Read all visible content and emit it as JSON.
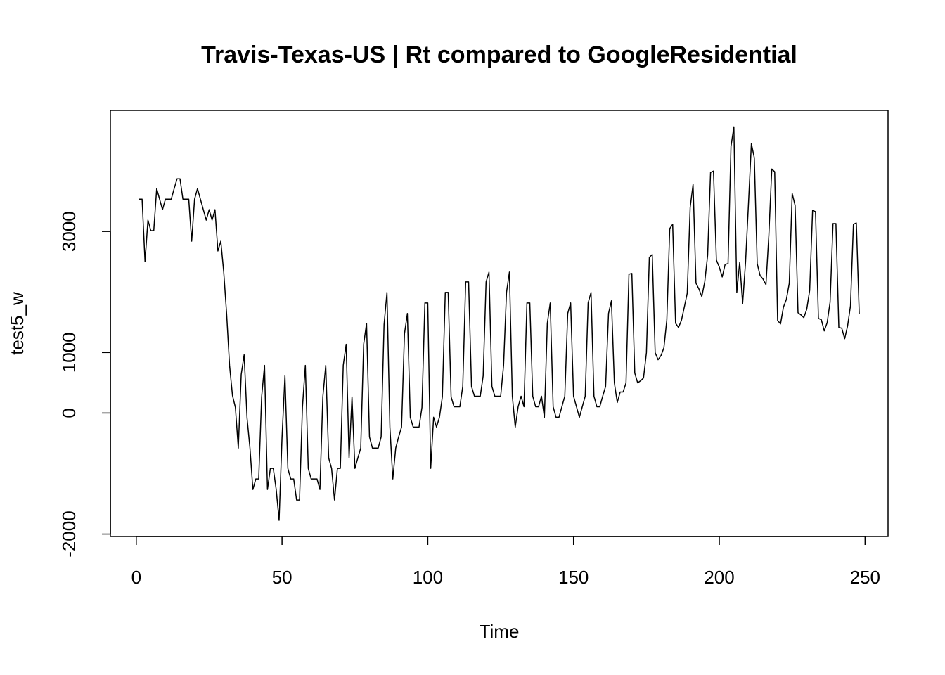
{
  "chart_data": {
    "type": "line",
    "title": "Travis-Texas-US | Rt compared to GoogleResidential",
    "xlabel": "Time",
    "ylabel": "test5_w",
    "color": "#000000",
    "xlim": [
      -8.88,
      257.88
    ],
    "ylim": [
      -2040,
      5000
    ],
    "xticks": [
      0,
      50,
      100,
      150,
      200,
      250
    ],
    "yticks": [
      -2000,
      0,
      1000,
      3000
    ],
    "x": [
      1,
      2,
      3,
      4,
      5,
      6,
      7,
      8,
      9,
      10,
      11,
      12,
      13,
      14,
      15,
      16,
      17,
      18,
      19,
      20,
      21,
      22,
      23,
      24,
      25,
      26,
      27,
      28,
      29,
      30,
      31,
      32,
      33,
      34,
      35,
      36,
      37,
      38,
      39,
      40,
      41,
      42,
      43,
      44,
      45,
      46,
      47,
      48,
      49,
      50,
      51,
      52,
      53,
      54,
      55,
      56,
      57,
      58,
      59,
      60,
      61,
      62,
      63,
      64,
      65,
      66,
      67,
      68,
      69,
      70,
      71,
      72,
      73,
      74,
      75,
      76,
      77,
      78,
      79,
      80,
      81,
      82,
      83,
      84,
      85,
      86,
      87,
      88,
      89,
      90,
      91,
      92,
      93,
      94,
      95,
      96,
      97,
      98,
      99,
      100,
      101,
      102,
      103,
      104,
      105,
      106,
      107,
      108,
      109,
      110,
      111,
      112,
      113,
      114,
      115,
      116,
      117,
      118,
      119,
      120,
      121,
      122,
      123,
      124,
      125,
      126,
      127,
      128,
      129,
      130,
      131,
      132,
      133,
      134,
      135,
      136,
      137,
      138,
      139,
      140,
      141,
      142,
      143,
      144,
      145,
      146,
      147,
      148,
      149,
      150,
      151,
      152,
      153,
      154,
      155,
      156,
      157,
      158,
      159,
      160,
      161,
      162,
      163,
      164,
      165,
      166,
      167,
      168,
      169,
      170,
      171,
      172,
      173,
      174,
      175,
      176,
      177,
      178,
      179,
      180,
      181,
      182,
      183,
      184,
      185,
      186,
      187,
      188,
      189,
      190,
      191,
      192,
      193,
      194,
      195,
      196,
      197,
      198,
      199,
      200,
      201,
      202,
      203,
      204,
      205,
      206,
      207,
      208,
      209,
      210,
      211,
      212,
      213,
      214,
      215,
      216,
      217,
      218,
      219,
      220,
      221,
      222,
      223,
      224,
      225,
      226,
      227,
      228,
      229,
      230,
      231,
      232,
      233,
      234,
      235,
      236,
      237,
      238,
      239,
      240,
      241,
      242,
      243,
      244,
      245,
      246,
      247,
      248
    ],
    "values": [
      3534,
      3534,
      2500,
      3187,
      3013,
      3013,
      3708,
      3534,
      3360,
      3534,
      3534,
      3534,
      3708,
      3870,
      3870,
      3534,
      3534,
      3534,
      2839,
      3534,
      3708,
      3534,
      3360,
      3187,
      3360,
      3187,
      3360,
      2677,
      2839,
      2329,
      1634,
      788,
      290,
      93,
      -579,
      637,
      962,
      -81,
      -579,
      -1263,
      -1089,
      -1089,
      267,
      788,
      -1263,
      -915,
      -915,
      -1263,
      -1773,
      -406,
      614,
      -915,
      -1089,
      -1089,
      -1437,
      -1437,
      93,
      788,
      -915,
      -1089,
      -1089,
      -1089,
      -1263,
      267,
      788,
      -742,
      -915,
      -1437,
      -915,
      -915,
      788,
      1136,
      -742,
      267,
      -915,
      -742,
      -579,
      1136,
      1483,
      -394,
      -579,
      -579,
      -579,
      -394,
      1460,
      1993,
      -232,
      -1089,
      -579,
      -394,
      -232,
      1309,
      1645,
      -70,
      -232,
      -232,
      -232,
      93,
      1819,
      1819,
      -915,
      -70,
      -232,
      -70,
      267,
      1993,
      1993,
      267,
      104,
      104,
      104,
      440,
      2167,
      2167,
      440,
      278,
      278,
      278,
      614,
      2167,
      2329,
      440,
      278,
      278,
      278,
      788,
      1993,
      2329,
      278,
      -232,
      104,
      278,
      104,
      1819,
      1819,
      278,
      104,
      104,
      278,
      -70,
      1483,
      1819,
      104,
      -70,
      -70,
      104,
      278,
      1645,
      1819,
      278,
      104,
      -70,
      104,
      278,
      1819,
      1993,
      278,
      104,
      104,
      278,
      440,
      1645,
      1854,
      498,
      174,
      348,
      348,
      498,
      2294,
      2306,
      660,
      498,
      533,
      579,
      997,
      2572,
      2619,
      997,
      881,
      950,
      1078,
      1541,
      3048,
      3117,
      1483,
      1414,
      1530,
      1750,
      1981,
      3395,
      3778,
      2144,
      2051,
      1924,
      2167,
      2607,
      3974,
      3998,
      2526,
      2410,
      2248,
      2457,
      2468,
      4403,
      4728,
      1993,
      2491,
      1808,
      2491,
      3453,
      4450,
      4218,
      2468,
      2271,
      2213,
      2121,
      2943,
      4032,
      3986,
      1530,
      1472,
      1750,
      1877,
      2144,
      3627,
      3430,
      1657,
      1622,
      1576,
      1715,
      2028,
      3349,
      3326,
      1564,
      1541,
      1356,
      1495,
      1831,
      3129,
      3129,
      1414,
      1402,
      1228,
      1437,
      1773,
      3117,
      3140,
      1634
    ]
  }
}
